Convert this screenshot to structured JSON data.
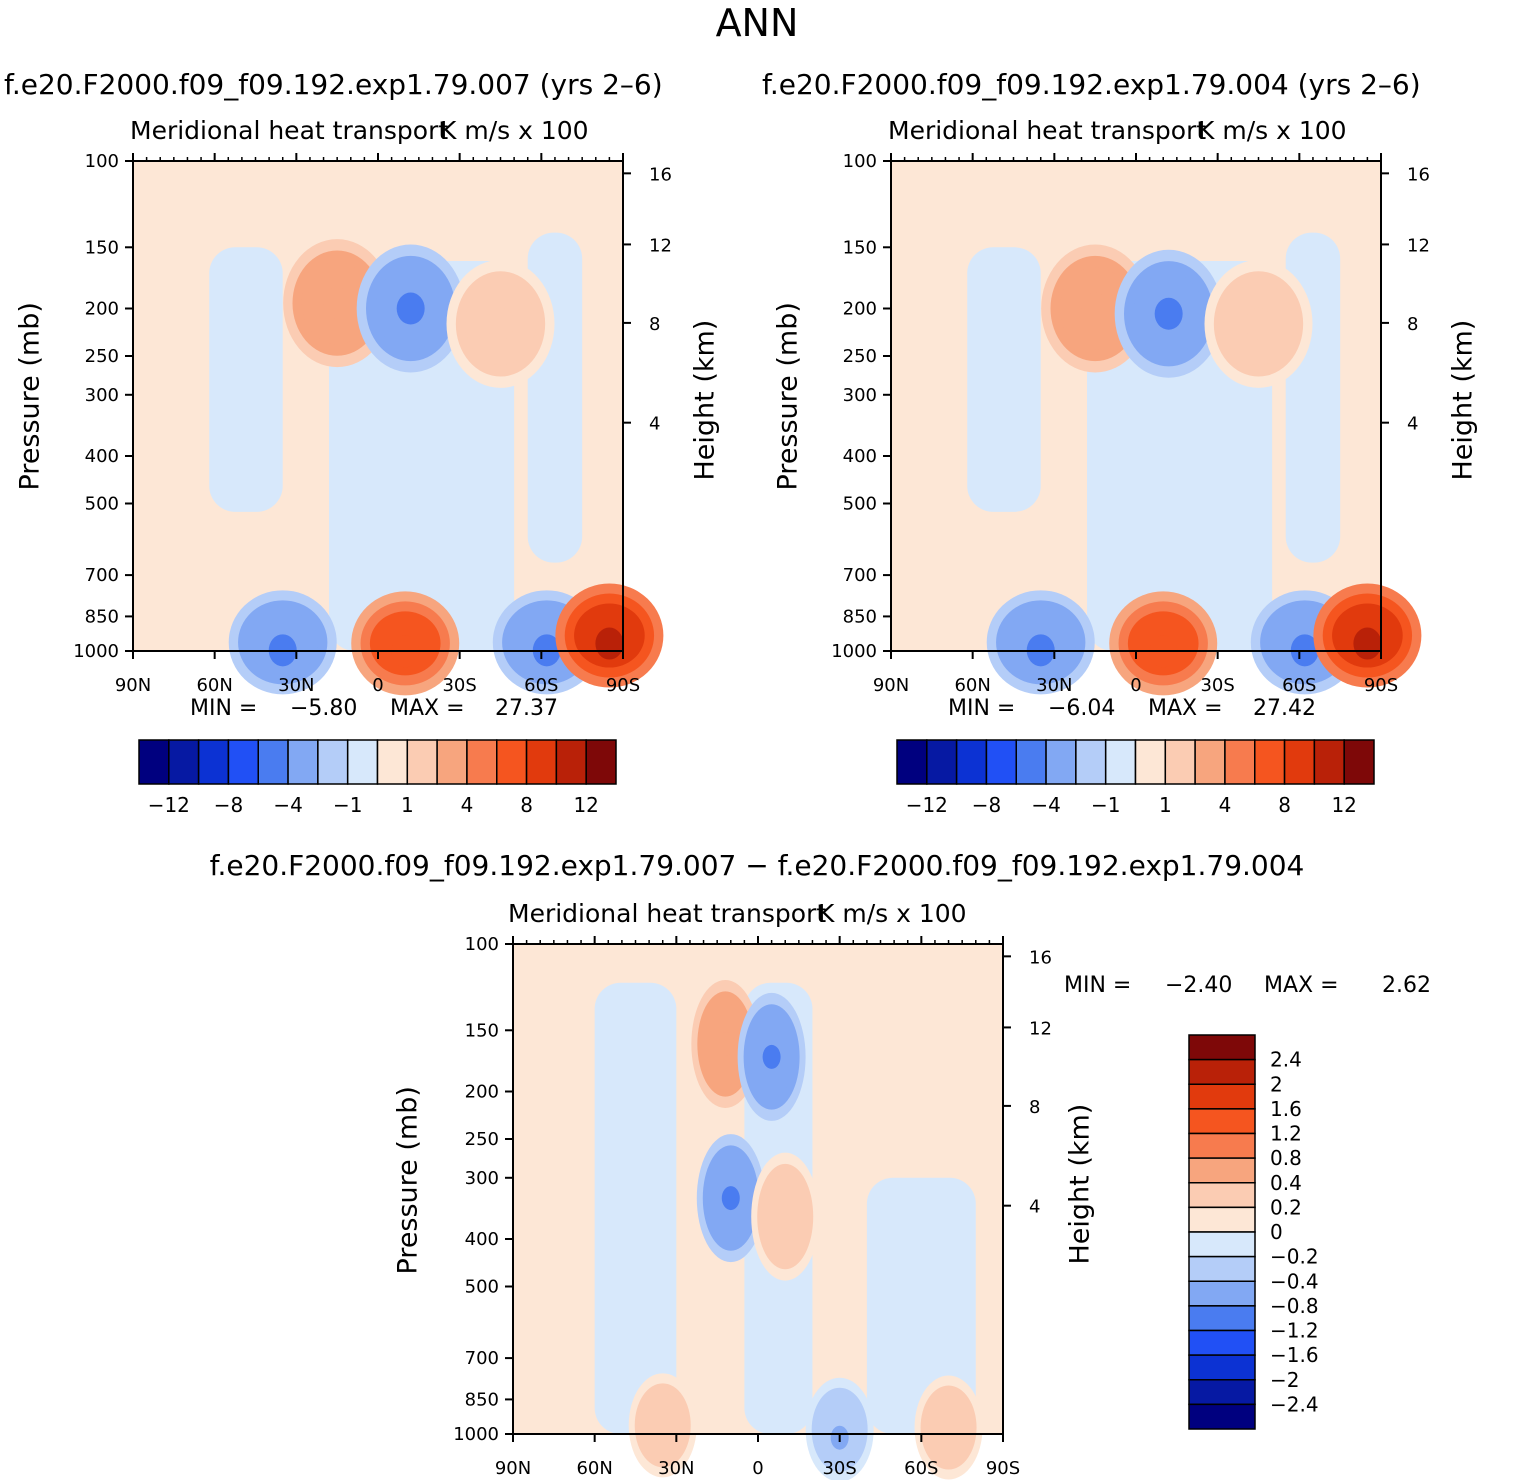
{
  "title": "ANN",
  "colors": {
    "diverging": [
      "#00007f",
      "#0619a3",
      "#0c32d3",
      "#2150f5",
      "#4a7cf0",
      "#82a8f3",
      "#b4cdf8",
      "#d7e8fb",
      "#fde7d6",
      "#fbccb3",
      "#f7a57e",
      "#f77b4e",
      "#f5551f",
      "#e13a0d",
      "#b92108",
      "#7e0808"
    ]
  },
  "panels": [
    {
      "case": "f.e20.F2000.f09_f09.192.exp1.79.007 (yrs 2–6)",
      "left_title": "Meridional heat transport",
      "right_title": "K m/s x 100",
      "min_label": "MIN =",
      "min_value": "−5.80",
      "max_label": "MAX =",
      "max_value": "27.37"
    },
    {
      "case": "f.e20.F2000.f09_f09.192.exp1.79.004 (yrs 2–6)",
      "left_title": "Meridional heat transport",
      "right_title": "K m/s x 100",
      "min_label": "MIN =",
      "min_value": "−6.04",
      "max_label": "MAX =",
      "max_value": "27.42"
    },
    {
      "case": "f.e20.F2000.f09_f09.192.exp1.79.007 − f.e20.F2000.f09_f09.192.exp1.79.004",
      "left_title": "Meridional heat transport",
      "right_title": "K m/s x 100",
      "min_label": "MIN =",
      "min_value": "−2.40",
      "max_label": "MAX =",
      "max_value": "2.62"
    }
  ],
  "axes": {
    "ylabel": "Pressure (mb)",
    "ylabel_right": "Height (km)"
  },
  "colorbar_main": {
    "labels": [
      "−12",
      "−8",
      "−4",
      "−1",
      "1",
      "4",
      "8",
      "12"
    ]
  },
  "colorbar_diff": {
    "labels": [
      "2.4",
      "2",
      "1.6",
      "1.2",
      "0.8",
      "0.4",
      "0.2",
      "0",
      "−0.2",
      "−0.4",
      "−0.8",
      "−1.2",
      "−1.6",
      "−2",
      "−2.4"
    ]
  },
  "chart_data": [
    {
      "type": "heatmap",
      "title": "Meridional heat transport",
      "units": "K m/s x 100",
      "x": {
        "ticks": [
          "90N",
          "60N",
          "30N",
          "0",
          "30S",
          "60S",
          "90S"
        ],
        "range_deg": [
          90,
          -90
        ]
      },
      "y": {
        "ticks": [
          100,
          150,
          200,
          250,
          300,
          400,
          500,
          700,
          850,
          1000
        ],
        "range_mb": [
          100,
          1000
        ],
        "scale": "log"
      },
      "y2": {
        "ticks": [
          16,
          12,
          8,
          4
        ],
        "label": "Height (km)"
      },
      "levels": [
        -12,
        -10,
        -8,
        -6,
        -4,
        -2,
        -1,
        0,
        1,
        2,
        4,
        6,
        8,
        10,
        12
      ],
      "min": -5.8,
      "max": 27.37,
      "features": [
        {
          "lat": 15,
          "p_mb": 195,
          "value": 4
        },
        {
          "lat": -12,
          "p_mb": 200,
          "value": -4
        },
        {
          "lat": -45,
          "p_mb": 215,
          "value": 2
        },
        {
          "lat": 35,
          "p_mb": 960,
          "value": -4
        },
        {
          "lat": -10,
          "p_mb": 965,
          "value": 8
        },
        {
          "lat": -62,
          "p_mb": 960,
          "value": -4
        },
        {
          "lat": -85,
          "p_mb": 930,
          "value": 12
        }
      ]
    },
    {
      "type": "heatmap",
      "title": "Meridional heat transport",
      "units": "K m/s x 100",
      "x": {
        "ticks": [
          "90N",
          "60N",
          "30N",
          "0",
          "30S",
          "60S",
          "90S"
        ],
        "range_deg": [
          90,
          -90
        ]
      },
      "y": {
        "ticks": [
          100,
          150,
          200,
          250,
          300,
          400,
          500,
          700,
          850,
          1000
        ],
        "range_mb": [
          100,
          1000
        ],
        "scale": "log"
      },
      "levels": [
        -12,
        -10,
        -8,
        -6,
        -4,
        -2,
        -1,
        0,
        1,
        2,
        4,
        6,
        8,
        10,
        12
      ],
      "min": -6.04,
      "max": 27.42,
      "features": [
        {
          "lat": 15,
          "p_mb": 200,
          "value": 4
        },
        {
          "lat": -12,
          "p_mb": 205,
          "value": -4
        },
        {
          "lat": -45,
          "p_mb": 215,
          "value": 2
        },
        {
          "lat": 35,
          "p_mb": 960,
          "value": -4
        },
        {
          "lat": -10,
          "p_mb": 965,
          "value": 8
        },
        {
          "lat": -62,
          "p_mb": 960,
          "value": -4
        },
        {
          "lat": -85,
          "p_mb": 930,
          "value": 12
        }
      ]
    },
    {
      "type": "heatmap",
      "title": "Meridional heat transport",
      "units": "K m/s x 100",
      "x": {
        "ticks": [
          "90N",
          "60N",
          "30N",
          "0",
          "30S",
          "60S",
          "90S"
        ],
        "range_deg": [
          90,
          -90
        ]
      },
      "y": {
        "ticks": [
          100,
          150,
          200,
          250,
          300,
          400,
          500,
          700,
          850,
          1000
        ],
        "range_mb": [
          100,
          1000
        ],
        "scale": "log"
      },
      "levels": [
        -2.4,
        -2,
        -1.6,
        -1.2,
        -0.8,
        -0.4,
        -0.2,
        0,
        0.2,
        0.4,
        0.8,
        1.2,
        1.6,
        2,
        2.4
      ],
      "min": -2.4,
      "max": 2.62,
      "features": [
        {
          "lat": 12,
          "p_mb": 160,
          "value": 0.8
        },
        {
          "lat": -5,
          "p_mb": 170,
          "value": -0.8
        },
        {
          "lat": 10,
          "p_mb": 330,
          "value": -0.8
        },
        {
          "lat": -10,
          "p_mb": 360,
          "value": 0.4
        },
        {
          "lat": 35,
          "p_mb": 960,
          "value": 0.4
        },
        {
          "lat": -30,
          "p_mb": 980,
          "value": -0.4
        },
        {
          "lat": -70,
          "p_mb": 970,
          "value": 0.4
        }
      ]
    }
  ]
}
